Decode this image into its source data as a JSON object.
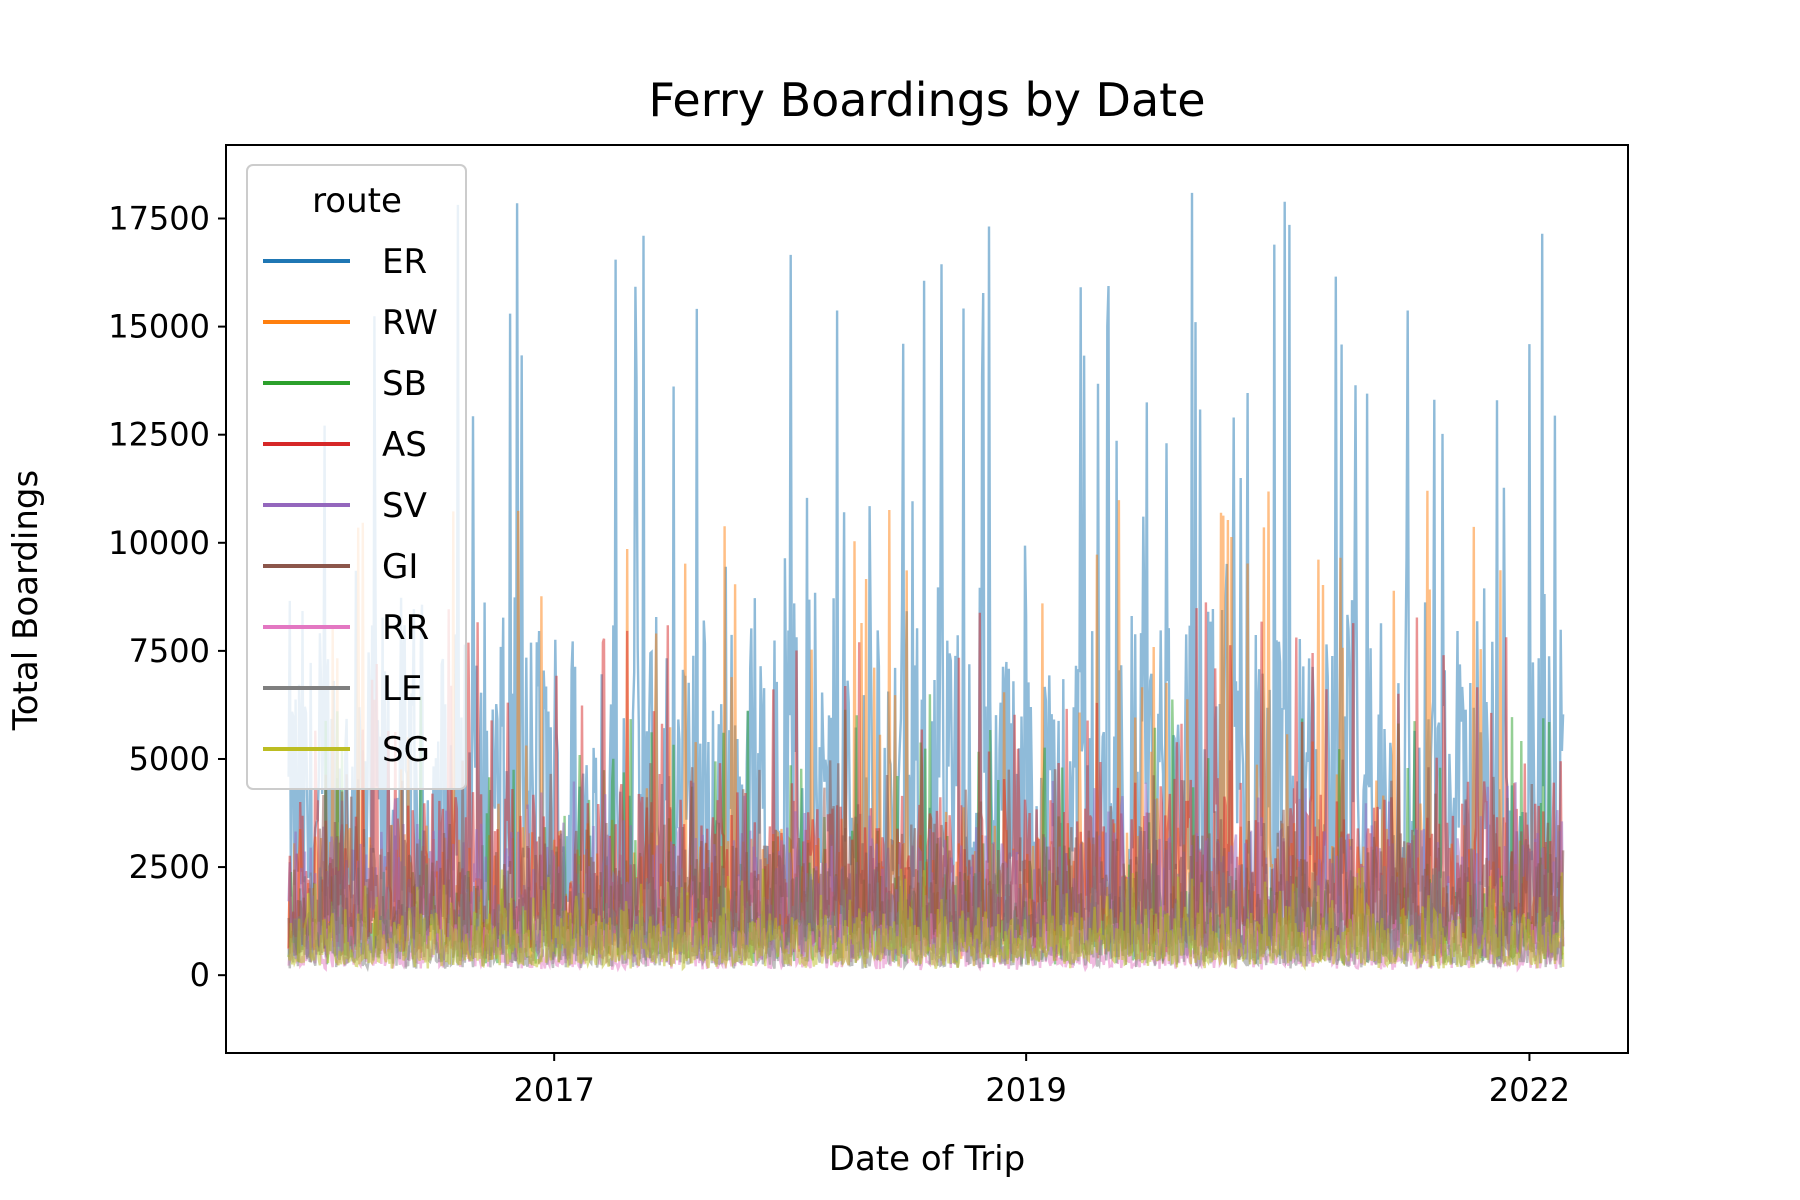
{
  "chart_data": {
    "type": "line",
    "title": "Ferry Boardings by Date",
    "xlabel": "Date of Trip",
    "ylabel": "Total Boardings",
    "x_units": "day index from start of data",
    "xlim": [
      -54,
      1155
    ],
    "x_ticks": [
      {
        "value": 229,
        "label": "2017"
      },
      {
        "value": 636,
        "label": "2019"
      },
      {
        "value": 1070,
        "label": "2022"
      }
    ],
    "ylim": [
      -1800,
      19200
    ],
    "y_ticks": [
      0,
      2500,
      5000,
      7500,
      10000,
      12500,
      15000,
      17500
    ],
    "y_tick_labels": [
      "0",
      "2500",
      "5000",
      "7500",
      "10000",
      "12500",
      "15000",
      "17500"
    ],
    "grid": false,
    "legend": {
      "title": "route",
      "placement": "top-left"
    },
    "n_points": 1100,
    "series": [
      {
        "name": "ER",
        "color": "#1f77b4",
        "min": 0,
        "typical": 5500,
        "max": 18200
      },
      {
        "name": "RW",
        "color": "#ff7f0e",
        "min": 0,
        "typical": 2200,
        "max": 11300
      },
      {
        "name": "SB",
        "color": "#2ca02c",
        "min": 0,
        "typical": 1600,
        "max": 6500
      },
      {
        "name": "AS",
        "color": "#d62728",
        "min": 0,
        "typical": 2800,
        "max": 8800
      },
      {
        "name": "SV",
        "color": "#9467bd",
        "min": 0,
        "typical": 2200,
        "max": 4500
      },
      {
        "name": "GI",
        "color": "#8c564b",
        "min": 0,
        "typical": 2200,
        "max": 5000
      },
      {
        "name": "RR",
        "color": "#e377c2",
        "min": 0,
        "typical": 800,
        "max": 1500
      },
      {
        "name": "LE",
        "color": "#7f7f7f",
        "min": 0,
        "typical": 1000,
        "max": 2600
      },
      {
        "name": "SG",
        "color": "#bcbd22",
        "min": 0,
        "typical": 1000,
        "max": 2500
      }
    ]
  }
}
